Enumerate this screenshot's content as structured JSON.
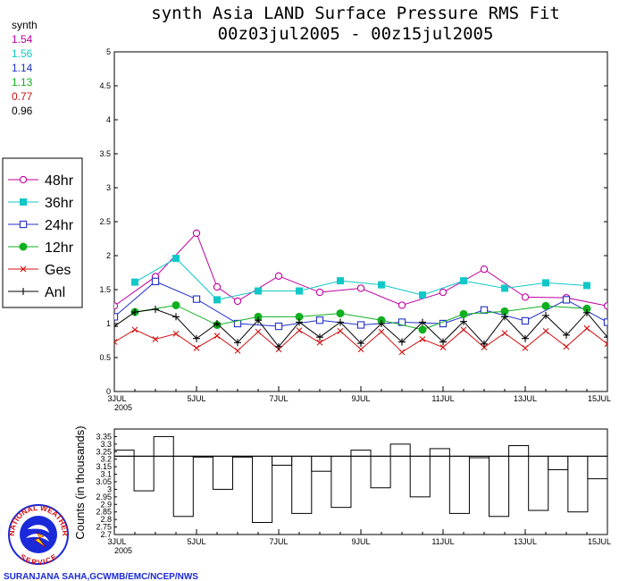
{
  "colors": {
    "h48": "#c000a0",
    "h36": "#10c8c8",
    "h24": "#2030c8",
    "h12": "#10b020",
    "ges": "#d01010",
    "anl": "#000000",
    "credit": "#1a2ad8"
  },
  "header": {
    "title_line1": "synth Asia LAND Surface Pressure RMS Fit",
    "title_line2": "00z03jul2005 - 00z15jul2005"
  },
  "stats": {
    "label": "synth",
    "items": [
      {
        "value": "1.54",
        "color": "#c000a0"
      },
      {
        "value": "1.56",
        "color": "#10c8c8"
      },
      {
        "value": "1.14",
        "color": "#2030c8"
      },
      {
        "value": "1.13",
        "color": "#10b020"
      },
      {
        "value": "0.77",
        "color": "#d01010"
      },
      {
        "value": "0.96",
        "color": "#000000"
      }
    ]
  },
  "credit": "SURANJANA SAHA,GCWMB/EMC/NCEP/NWS",
  "logo": {
    "top_text": "NATIONAL WEATHER",
    "bottom_text": "SERVICE"
  },
  "chart_data": [
    {
      "type": "line",
      "title": "synth Asia LAND Surface Pressure RMS Fit",
      "subtitle": "00z03jul2005 - 00z15jul2005",
      "xlim": [
        0,
        24
      ],
      "ylim": [
        0,
        5
      ],
      "x_ticks": [
        {
          "x": 0,
          "label": "3JUL",
          "label2": "2005"
        },
        {
          "x": 4,
          "label": "5JUL"
        },
        {
          "x": 8,
          "label": "7JUL"
        },
        {
          "x": 12,
          "label": "9JUL"
        },
        {
          "x": 16,
          "label": "11JUL"
        },
        {
          "x": 20,
          "label": "13JUL"
        },
        {
          "x": 24,
          "label": "15JUL"
        }
      ],
      "y_ticks": [
        "0",
        "0.5",
        "1",
        "1.5",
        "2",
        "2.5",
        "3",
        "3.5",
        "4",
        "4.5",
        "5"
      ],
      "legend_position": "left",
      "series": [
        {
          "name": "48hr",
          "key": "h48",
          "marker": "open-circle",
          "x": [
            0,
            2,
            4,
            5,
            6,
            8,
            10,
            12,
            14,
            16,
            18,
            20,
            22,
            24
          ],
          "y": [
            1.26,
            1.69,
            2.33,
            1.54,
            1.33,
            1.7,
            1.46,
            1.52,
            1.27,
            1.46,
            1.8,
            1.39,
            1.38,
            1.26
          ]
        },
        {
          "name": "36hr",
          "key": "h36",
          "marker": "filled-square",
          "x": [
            1,
            3,
            5,
            7,
            9,
            11,
            13,
            15,
            17,
            19,
            21,
            23
          ],
          "y": [
            1.61,
            1.96,
            1.35,
            1.48,
            1.48,
            1.63,
            1.57,
            1.42,
            1.63,
            1.52,
            1.6,
            1.56
          ]
        },
        {
          "name": "24hr",
          "key": "h24",
          "marker": "open-square",
          "x": [
            0,
            2,
            4,
            6,
            8,
            10,
            12,
            14,
            16,
            18,
            20,
            22,
            24
          ],
          "y": [
            1.1,
            1.62,
            1.36,
            1.0,
            0.96,
            1.05,
            0.98,
            1.02,
            1.0,
            1.2,
            1.04,
            1.35,
            1.02
          ]
        },
        {
          "name": "12hr",
          "key": "h12",
          "marker": "filled-circle",
          "x": [
            1,
            3,
            5,
            7,
            9,
            11,
            13,
            15,
            17,
            19,
            21,
            23
          ],
          "y": [
            1.17,
            1.27,
            0.98,
            1.1,
            1.1,
            1.15,
            1.05,
            0.91,
            1.14,
            1.18,
            1.26,
            1.22
          ]
        },
        {
          "name": "Ges",
          "key": "ges",
          "marker": "x",
          "x": [
            0,
            1,
            2,
            3,
            4,
            5,
            6,
            7,
            8,
            9,
            10,
            11,
            12,
            13,
            14,
            15,
            16,
            17,
            18,
            19,
            20,
            21,
            22,
            23,
            24
          ],
          "y": [
            0.73,
            0.91,
            0.77,
            0.85,
            0.64,
            0.82,
            0.6,
            0.88,
            0.62,
            0.9,
            0.72,
            0.89,
            0.62,
            0.88,
            0.58,
            0.77,
            0.65,
            0.91,
            0.65,
            0.86,
            0.64,
            0.89,
            0.66,
            0.93,
            0.7
          ]
        },
        {
          "name": "Anl",
          "key": "anl",
          "marker": "plus",
          "x": [
            0,
            1,
            2,
            3,
            4,
            5,
            6,
            7,
            8,
            9,
            10,
            11,
            12,
            13,
            14,
            15,
            16,
            17,
            18,
            19,
            20,
            21,
            22,
            23,
            24
          ],
          "y": [
            0.96,
            1.17,
            1.21,
            1.1,
            0.78,
            1.0,
            0.72,
            1.05,
            0.66,
            1.02,
            0.8,
            1.02,
            0.71,
            1.0,
            0.73,
            1.02,
            0.73,
            1.03,
            0.7,
            1.1,
            0.78,
            1.12,
            0.83,
            1.16,
            0.8
          ]
        }
      ]
    },
    {
      "type": "bar",
      "ylabel": "Counts (in thousands)",
      "xlim": [
        0,
        24
      ],
      "ylim": [
        2.7,
        3.4
      ],
      "y_ticks": [
        "2.7",
        "2.75",
        "2.8",
        "2.85",
        "2.9",
        "2.95",
        "3",
        "3.05",
        "3.1",
        "3.15",
        "3.2",
        "3.25",
        "3.3",
        "3.35"
      ],
      "x_ticks": [
        {
          "x": 0,
          "label": "3JUL",
          "label2": "2005"
        },
        {
          "x": 4,
          "label": "5JUL"
        },
        {
          "x": 8,
          "label": "7JUL"
        },
        {
          "x": 12,
          "label": "9JUL"
        },
        {
          "x": 16,
          "label": "11JUL"
        },
        {
          "x": 20,
          "label": "13JUL"
        },
        {
          "x": 24,
          "label": "15JUL"
        }
      ],
      "baseline": 3.22,
      "values": [
        3.26,
        2.99,
        3.35,
        2.82,
        3.22,
        3.0,
        3.22,
        2.78,
        3.16,
        2.84,
        3.12,
        2.88,
        3.26,
        3.01,
        3.3,
        2.95,
        3.27,
        2.84,
        3.21,
        2.82,
        3.29,
        2.86,
        3.13,
        2.85,
        3.07
      ]
    }
  ]
}
